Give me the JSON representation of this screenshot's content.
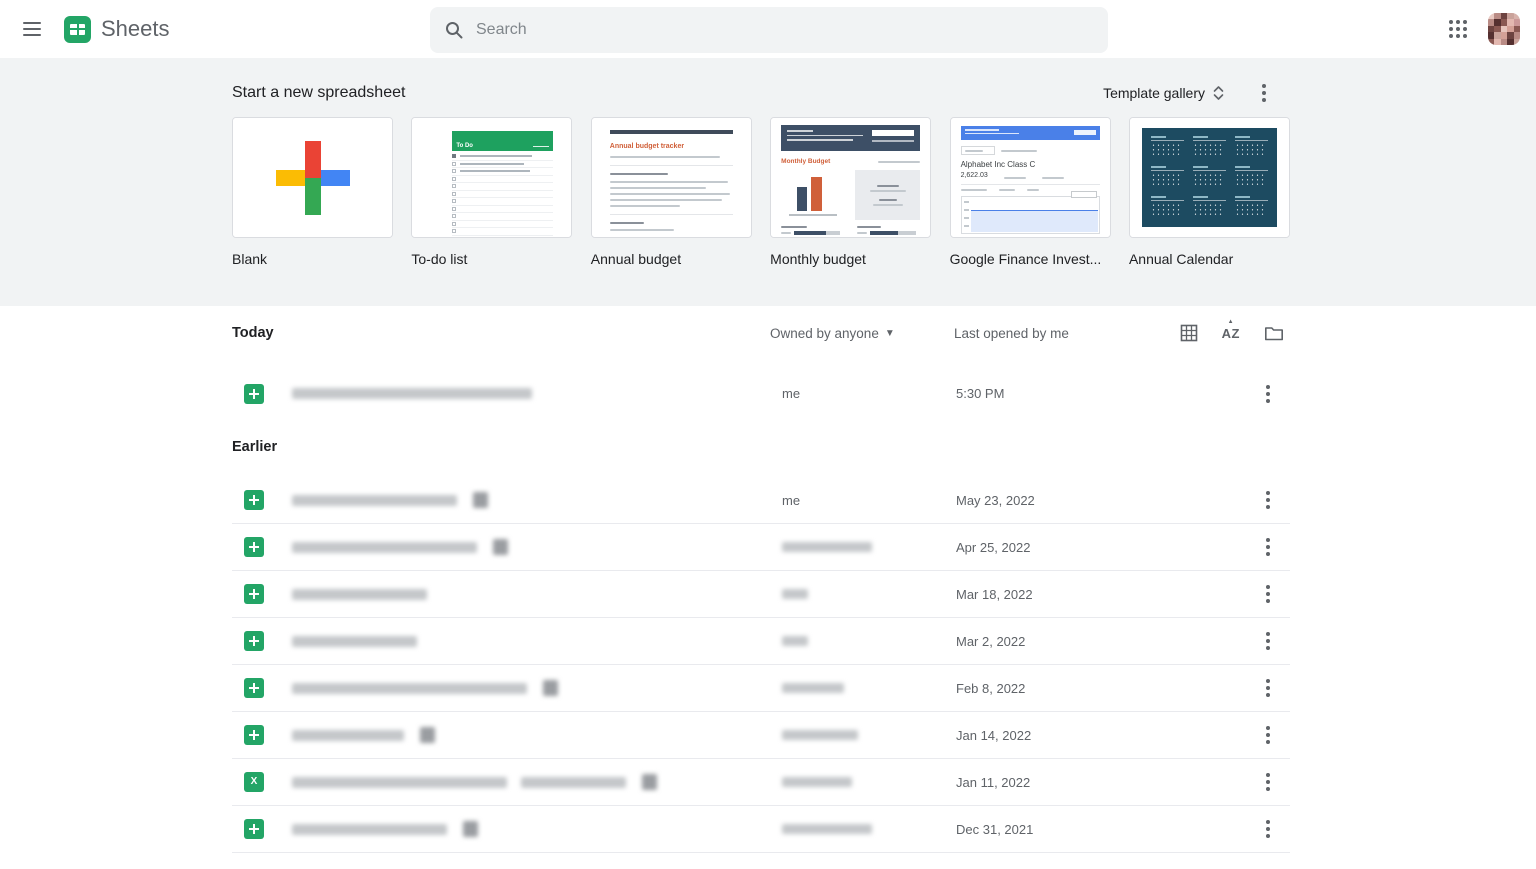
{
  "topbar": {
    "app_title": "Sheets",
    "search_placeholder": "Search"
  },
  "templates": {
    "section_title": "Start a new spreadsheet",
    "gallery_label": "Template gallery",
    "items": [
      {
        "id": "blank",
        "label": "Blank"
      },
      {
        "id": "todo",
        "label": "To-do list"
      },
      {
        "id": "annual_budget",
        "label": "Annual budget"
      },
      {
        "id": "monthly_budget",
        "label": "Monthly budget"
      },
      {
        "id": "finance",
        "label": "Google Finance Invest..."
      },
      {
        "id": "calendar",
        "label": "Annual Calendar"
      }
    ],
    "thumb_texts": {
      "todo_title": "To Do",
      "annual_budget_title": "Annual budget tracker",
      "monthly_budget_title": "Monthly Budget",
      "finance_title": "Alphabet Inc Class C",
      "finance_price": "2,622.03"
    }
  },
  "list": {
    "filter_label": "Owned by anyone",
    "sort_label": "Last opened by me",
    "today_title": "Today",
    "earlier_title": "Earlier",
    "rows": [
      {
        "section": "Today",
        "icon": "sheets",
        "owner": "me",
        "owner_blur": 0,
        "date": "5:30 PM",
        "name_blur": [
          240
        ],
        "badge": false
      },
      {
        "section": "Earlier",
        "icon": "sheets",
        "owner": "me",
        "owner_blur": 0,
        "date": "May 23, 2022",
        "name_blur": [
          165
        ],
        "badge": true
      },
      {
        "section": "Earlier",
        "icon": "sheets",
        "owner": "",
        "owner_blur": 90,
        "date": "Apr 25, 2022",
        "name_blur": [
          185
        ],
        "badge": true
      },
      {
        "section": "Earlier",
        "icon": "sheets",
        "owner": "",
        "owner_blur": 26,
        "date": "Mar 18, 2022",
        "name_blur": [
          135
        ],
        "badge": false
      },
      {
        "section": "Earlier",
        "icon": "sheets",
        "owner": "",
        "owner_blur": 26,
        "date": "Mar 2, 2022",
        "name_blur": [
          125
        ],
        "badge": false
      },
      {
        "section": "Earlier",
        "icon": "sheets",
        "owner": "",
        "owner_blur": 62,
        "date": "Feb 8, 2022",
        "name_blur": [
          235
        ],
        "badge": true
      },
      {
        "section": "Earlier",
        "icon": "sheets",
        "owner": "",
        "owner_blur": 76,
        "date": "Jan 14, 2022",
        "name_blur": [
          112
        ],
        "badge": true
      },
      {
        "section": "Earlier",
        "icon": "excel",
        "owner": "",
        "owner_blur": 70,
        "date": "Jan 11, 2022",
        "name_blur": [
          215,
          105
        ],
        "badge": true
      },
      {
        "section": "Earlier",
        "icon": "sheets",
        "owner": "",
        "owner_blur": 90,
        "date": "Dec 31, 2021",
        "name_blur": [
          155
        ],
        "badge": true
      }
    ]
  },
  "colors": {
    "sheets_green": "#23a566",
    "band_bg": "#f1f3f4",
    "accent_blue": "#4a80e8",
    "thumb_orange": "#d0603a",
    "thumb_navy": "#3d4f66",
    "calendar_teal": "#1d4b61"
  },
  "avatar_pixels": [
    "#e8c9c2",
    "#b98b85",
    "#6d4340",
    "#caa39b",
    "#d8b3ac",
    "#b98b85",
    "#553030",
    "#8a5852",
    "#e3b8b0",
    "#cc9999",
    "#6d4340",
    "#8a5852",
    "#e7c4bc",
    "#d4a096",
    "#8a5852",
    "#553030",
    "#caa39b",
    "#d4a096",
    "#6d4340",
    "#b98b85",
    "#8a5852",
    "#e3b8b0",
    "#b98b85",
    "#553030",
    "#caa39b"
  ]
}
